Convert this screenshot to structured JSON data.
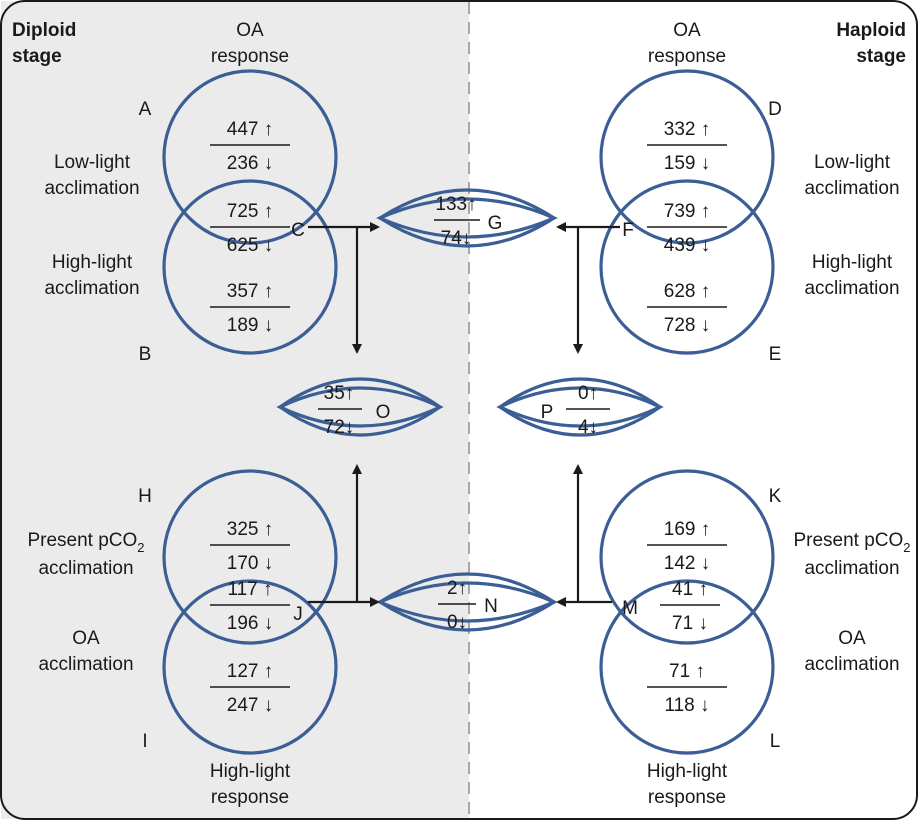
{
  "header": {
    "diploid": [
      "Diploid",
      "stage"
    ],
    "haploid": [
      "Haploid",
      "stage"
    ],
    "oa_response": [
      "OA",
      "response"
    ],
    "highlight_response": [
      "High-light",
      "response"
    ]
  },
  "side_labels": {
    "low_light": [
      "Low-light",
      "acclimation"
    ],
    "high_light": [
      "High-light",
      "acclimation"
    ],
    "present_pco2": [
      "Present pCO",
      "2",
      "acclimation"
    ],
    "oa_accl": [
      "OA",
      "acclimation"
    ]
  },
  "sets": {
    "A": {
      "label": "A",
      "up": "447 ↑",
      "down": "236 ↓"
    },
    "C": {
      "label": "C",
      "up": "725 ↑",
      "down": "625 ↓"
    },
    "B": {
      "label": "B",
      "up": "357 ↑",
      "down": "189 ↓"
    },
    "D": {
      "label": "D",
      "up": "332 ↑",
      "down": "159 ↓"
    },
    "F": {
      "label": "F",
      "up": "739 ↑",
      "down": "439 ↓"
    },
    "E": {
      "label": "E",
      "up": "628 ↑",
      "down": "728 ↓"
    },
    "G": {
      "label": "G",
      "up": "133↑",
      "down": "74↓"
    },
    "O": {
      "label": "O",
      "up": "35↑",
      "down": "72↓"
    },
    "P": {
      "label": "P",
      "up": "0↑",
      "down": "4↓"
    },
    "H": {
      "label": "H",
      "up": "325 ↑",
      "down": "170 ↓"
    },
    "J": {
      "label": "J",
      "up": "117 ↑",
      "down": "196 ↓"
    },
    "I": {
      "label": "I",
      "up": "127 ↑",
      "down": "247 ↓"
    },
    "K": {
      "label": "K",
      "up": "169 ↑",
      "down": "142 ↓"
    },
    "M": {
      "label": "M",
      "up": "41 ↑",
      "down": "71 ↓"
    },
    "L": {
      "label": "L",
      "up": "71 ↑",
      "down": "118 ↓"
    },
    "N": {
      "label": "N",
      "up": "2↑",
      "down": "0↓"
    }
  },
  "colors": {
    "circle_stroke": "#3b5f94",
    "diploid_panel": "#ebebeb",
    "haploid_panel": "#ffffff",
    "divider": "#a8a8a8"
  }
}
